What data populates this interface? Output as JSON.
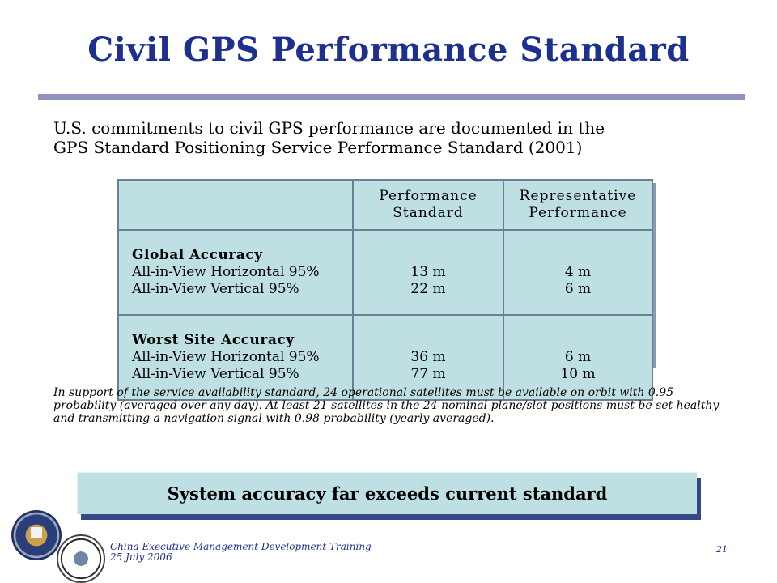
{
  "slide": {
    "title": "Civil GPS Performance Standard",
    "intro_line1": "U.S. commitments to civil GPS performance are documented in the",
    "intro_line2": "GPS Standard Positioning Service Performance Standard (2001)",
    "note": "In support of the service availability standard, 24 operational satellites must be available on orbit with 0.95 probability (averaged over any day). At least 21 satellites in the 24 nominal plane/slot positions must be set healthy and transmitting a navigation signal with 0.98 probability (yearly averaged).",
    "banner": "System accuracy far exceeds current standard",
    "footer_line1": "China Executive Management  Development Training",
    "footer_line2": "25 July 2006",
    "page_number": "21"
  },
  "table": {
    "headers": {
      "col2_line1": "Performance",
      "col2_line2": "Standard",
      "col3_line1": "Representative",
      "col3_line2": "Performance"
    },
    "rows": [
      {
        "heading": "Global Accuracy",
        "line1": "All-in-View Horizontal 95%",
        "line2": "All-in-View Vertical 95%",
        "standard1": "13 m",
        "standard2": "22 m",
        "performance1": "4 m",
        "performance2": "6 m"
      },
      {
        "heading": "Worst Site Accuracy",
        "line1": "All-in-View Horizontal 95%",
        "line2": "All-in-View Vertical 95%",
        "standard1": "36 m",
        "standard2": "77 m",
        "performance1": "6 m",
        "performance2": "10 m"
      }
    ]
  },
  "colors": {
    "title": "#1d2f8f",
    "cell_fill": "#bfe0e3",
    "rule": "#8f95bf"
  },
  "icons": {
    "left_logo": "great-seal-icon",
    "right_logo": "executive-committee-seal-icon"
  }
}
